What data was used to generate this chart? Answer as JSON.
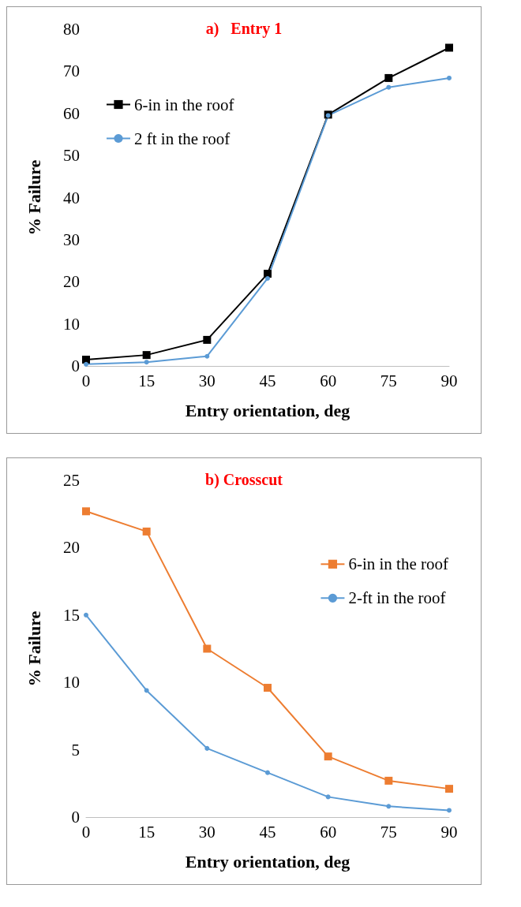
{
  "chart_data": [
    {
      "type": "line",
      "title": "a)   Entry 1",
      "xlabel": "Entry orientation, deg",
      "ylabel": "% Failure",
      "x": [
        0,
        15,
        30,
        45,
        60,
        75,
        90
      ],
      "xlim": [
        0,
        90
      ],
      "xticks": [
        0,
        15,
        30,
        45,
        60,
        75,
        90
      ],
      "ylim": [
        0,
        80
      ],
      "yticks": [
        0,
        10,
        20,
        30,
        40,
        50,
        60,
        70,
        80
      ],
      "grid": false,
      "legend": "top left",
      "series": [
        {
          "name": "6-in in the roof",
          "color": "#000000",
          "marker": "square",
          "values": [
            1.5,
            2.6,
            6.2,
            21.9,
            59.7,
            68.4,
            75.6
          ]
        },
        {
          "name": "2 ft in the roof",
          "color": "#5b9bd5",
          "marker": "circle",
          "values": [
            0.4,
            0.9,
            2.3,
            20.8,
            59.5,
            66.2,
            68.4
          ]
        }
      ]
    },
    {
      "type": "line",
      "title": "b) Crosscut",
      "xlabel": "Entry orientation, deg",
      "ylabel": "% Failure",
      "x": [
        0,
        15,
        30,
        45,
        60,
        75,
        90
      ],
      "xlim": [
        0,
        90
      ],
      "xticks": [
        0,
        15,
        30,
        45,
        60,
        75,
        90
      ],
      "ylim": [
        0,
        25
      ],
      "yticks": [
        0,
        5,
        10,
        15,
        20,
        25
      ],
      "grid": false,
      "legend": "top right",
      "series": [
        {
          "name": "6-in in the roof",
          "color": "#ed7d31",
          "marker": "square",
          "values": [
            22.7,
            21.2,
            12.5,
            9.6,
            4.5,
            2.7,
            2.1
          ]
        },
        {
          "name": "2-ft in the roof",
          "color": "#5b9bd5",
          "marker": "circle",
          "values": [
            15.0,
            9.4,
            5.1,
            3.3,
            1.5,
            0.8,
            0.5
          ]
        }
      ]
    }
  ]
}
